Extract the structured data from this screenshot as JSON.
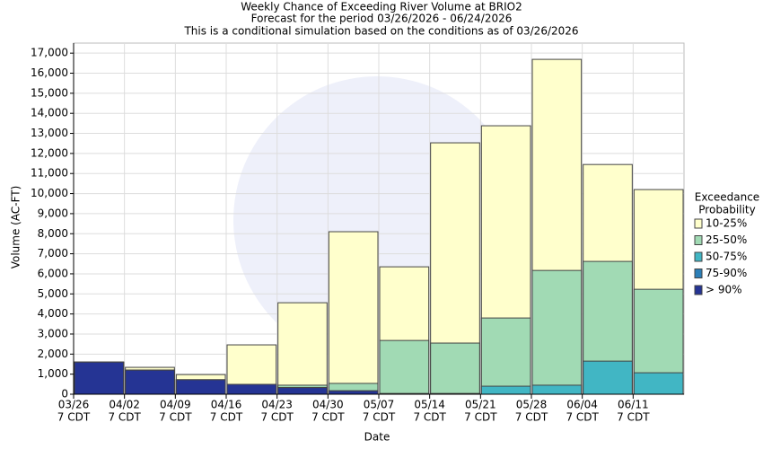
{
  "chart_data": {
    "type": "bar",
    "title": "Weekly Chance of Exceeding River Volume at BRIO2",
    "subtitle": [
      "Forecast for the period 03/26/2026 - 06/24/2026",
      "This is a conditional simulation based on the conditions as of 03/26/2026"
    ],
    "x_label": "Date",
    "y_label": "Volume (AC-FT)",
    "categories": [
      "03/26",
      "04/02",
      "04/09",
      "04/16",
      "04/23",
      "04/30",
      "05/07",
      "05/14",
      "05/21",
      "05/28",
      "06/04",
      "06/11"
    ],
    "category_sublabel": "7 CDT",
    "legend_title": [
      "Exceedance",
      "Probability"
    ],
    "series": [
      {
        "name": "10-25%",
        "color": "#ffffcc",
        "values": [
          1600,
          1340,
          980,
          2460,
          4560,
          8100,
          6350,
          12530,
          13380,
          16690,
          11450,
          10200
        ]
      },
      {
        "name": "25-50%",
        "color": "#a1dab4",
        "values": [
          1600,
          1200,
          720,
          490,
          450,
          540,
          2680,
          2550,
          3800,
          6170,
          6620,
          5230
        ]
      },
      {
        "name": "50-75%",
        "color": "#41b6c4",
        "values": [
          1600,
          1200,
          720,
          490,
          330,
          170,
          30,
          30,
          400,
          450,
          1650,
          1070
        ]
      },
      {
        "name": "75-90%",
        "color": "#2c7fb8",
        "values": [
          1600,
          1200,
          720,
          490,
          330,
          170,
          30,
          30,
          0,
          0,
          0,
          0
        ]
      },
      {
        "name": "> 90%",
        "color": "#253494",
        "values": [
          1600,
          1200,
          720,
          490,
          330,
          170,
          30,
          30,
          0,
          0,
          0,
          0
        ]
      }
    ],
    "ylim": [
      0,
      17500
    ],
    "yticks": [
      0,
      {
        "value": 1000,
        "label": "1,000"
      },
      {
        "value": 2000,
        "label": "2,000"
      },
      {
        "value": 3000,
        "label": "3,000"
      },
      {
        "value": 4000,
        "label": "4,000"
      },
      {
        "value": 5000,
        "label": "5,000"
      },
      {
        "value": 6000,
        "label": "6,000"
      },
      {
        "value": 7000,
        "label": "7,000"
      },
      {
        "value": 8000,
        "label": "8,000"
      },
      {
        "value": 9000,
        "label": "9,000"
      },
      {
        "value": 10000,
        "label": "10,000"
      },
      {
        "value": 11000,
        "label": "11,000"
      },
      {
        "value": 12000,
        "label": "12,000"
      },
      {
        "value": 13000,
        "label": "13,000"
      },
      {
        "value": 14000,
        "label": "14,000"
      },
      {
        "value": 15000,
        "label": "15,000"
      },
      {
        "value": 16000,
        "label": "16,000"
      },
      {
        "value": 17000,
        "label": "17,000"
      }
    ],
    "grid": true
  }
}
